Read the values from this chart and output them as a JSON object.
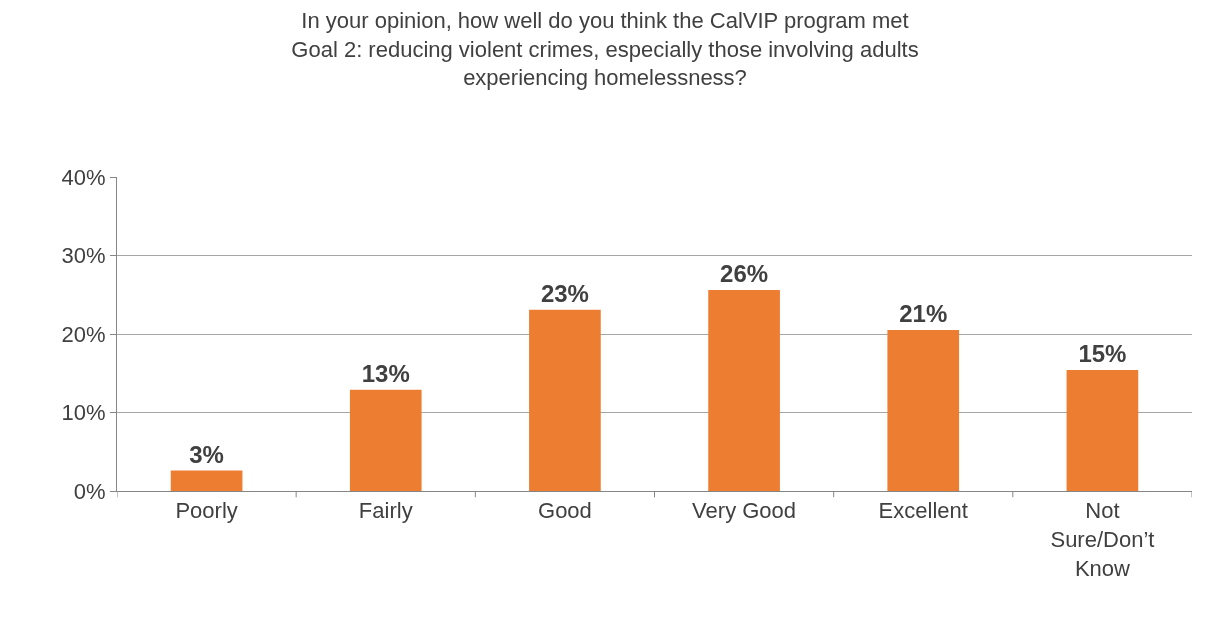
{
  "chart_data": {
    "type": "bar",
    "title": "In your opinion, how well do you think the CalVIP program met\nGoal 2: reducing violent crimes, especially those involving adults\nexperiencing homelessness?",
    "categories": [
      "Poorly",
      "Fairly",
      "Good",
      "Very Good",
      "Excellent",
      "Not Sure/Don’t Know"
    ],
    "values": [
      2.6,
      12.9,
      23.1,
      25.6,
      20.5,
      15.4
    ],
    "value_labels": [
      "3%",
      "13%",
      "23%",
      "26%",
      "21%",
      "15%"
    ],
    "color": "#ed7d31",
    "ylim": [
      0,
      40
    ],
    "yticks": [
      {
        "value": 0,
        "label": "0%"
      },
      {
        "value": 10,
        "label": "10%"
      },
      {
        "value": 20,
        "label": "20%"
      },
      {
        "value": 30,
        "label": "30%"
      },
      {
        "value": 40,
        "label": "40%"
      }
    ],
    "grid": "y"
  }
}
